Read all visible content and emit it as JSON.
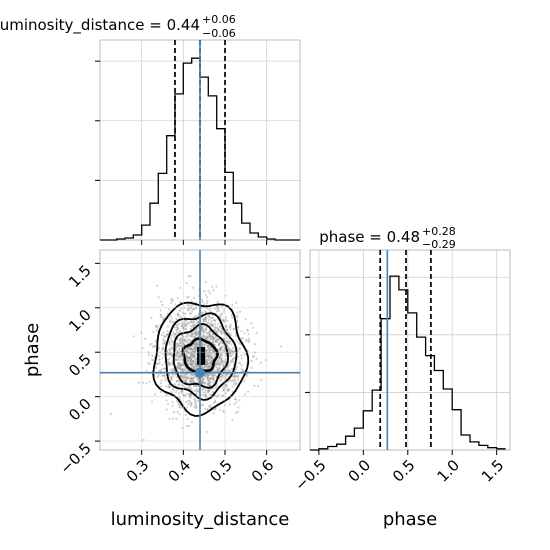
{
  "chart_data": {
    "type": "corner",
    "parameters": [
      "luminosity_distance",
      "phase"
    ],
    "titles": [
      {
        "label": "luminosity_distance = 0.44",
        "plus": "+0.06",
        "minus": "−0.06"
      },
      {
        "label": "phase = 0.48",
        "plus": "+0.28",
        "minus": "−0.29"
      }
    ],
    "xlabel_left": "luminosity_distance",
    "xlabel_right": "phase",
    "ylabel": "phase",
    "x_range": [
      0.2,
      0.68
    ],
    "y_range": [
      -0.6,
      1.65
    ],
    "x_ticks": [
      0.3,
      0.4,
      0.5,
      0.6
    ],
    "x_tick_labels": [
      "0.3",
      "0.4",
      "0.5",
      "0.6"
    ],
    "y_ticks": [
      -0.5,
      0.0,
      0.5,
      1.0,
      1.5
    ],
    "y_tick_labels": [
      "−0.5",
      "0.0",
      "0.5",
      "1.0",
      "1.5"
    ],
    "truth": {
      "luminosity_distance": 0.44,
      "phase": 0.27
    },
    "truth_color": "#4682b4",
    "hist_ld": {
      "edges": [
        0.2,
        0.22,
        0.24,
        0.26,
        0.28,
        0.3,
        0.32,
        0.34,
        0.36,
        0.38,
        0.4,
        0.42,
        0.44,
        0.46,
        0.48,
        0.5,
        0.52,
        0.54,
        0.56,
        0.58,
        0.6,
        0.62,
        0.64,
        0.66,
        0.68
      ],
      "counts": [
        0,
        0,
        1,
        2,
        5,
        15,
        37,
        67,
        105,
        147,
        178,
        183,
        164,
        145,
        112,
        68,
        37,
        17,
        7,
        3,
        1,
        0,
        0,
        0
      ],
      "quantiles": [
        0.38,
        0.44,
        0.5
      ]
    },
    "hist_phase": {
      "edges": [
        -0.6,
        -0.5,
        -0.4,
        -0.3,
        -0.2,
        -0.1,
        0.0,
        0.1,
        0.2,
        0.3,
        0.4,
        0.5,
        0.6,
        0.7,
        0.8,
        0.9,
        1.0,
        1.1,
        1.2,
        1.3,
        1.4,
        1.5,
        1.6
      ],
      "counts": [
        0,
        1,
        3,
        5,
        12,
        19,
        34,
        52,
        114,
        151,
        139,
        119,
        98,
        82,
        69,
        53,
        35,
        13,
        7,
        4,
        2,
        1
      ],
      "quantiles": [
        0.19,
        0.48,
        0.76
      ]
    },
    "density_cells": [
      {
        "x": 0.44,
        "y": 0.47,
        "level": 4
      }
    ],
    "contours": [
      {
        "rx": 0.04,
        "ry": 0.18,
        "cx": 0.44,
        "cy": 0.46
      },
      {
        "rx": 0.065,
        "ry": 0.34,
        "cx": 0.44,
        "cy": 0.45
      },
      {
        "rx": 0.085,
        "ry": 0.46,
        "cx": 0.44,
        "cy": 0.46
      },
      {
        "rx": 0.11,
        "ry": 0.62,
        "cx": 0.44,
        "cy": 0.45
      }
    ]
  }
}
